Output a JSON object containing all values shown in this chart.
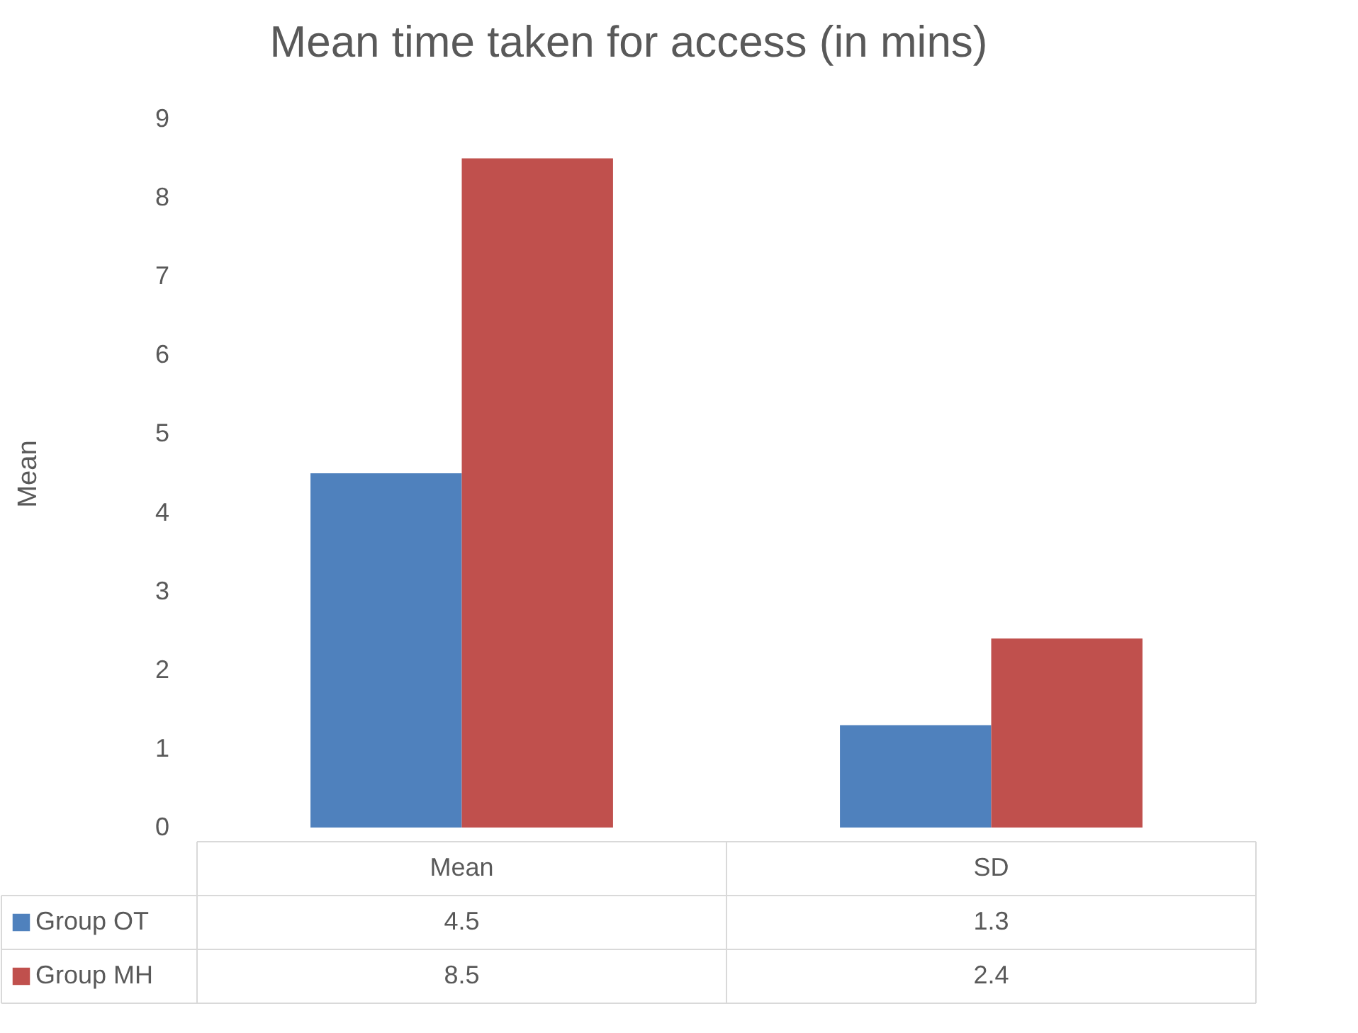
{
  "chart_data": {
    "type": "bar",
    "title": "Mean time taken for access (in mins)",
    "ylabel": "Mean",
    "categories": [
      "Mean",
      "SD"
    ],
    "series": [
      {
        "name": "Group OT",
        "color": "#4f81bd",
        "values": [
          4.5,
          1.3
        ]
      },
      {
        "name": "Group MH",
        "color": "#c0504d",
        "values": [
          8.5,
          2.4
        ]
      }
    ],
    "ylim": [
      0,
      9
    ],
    "yticks": [
      0,
      1,
      2,
      3,
      4,
      5,
      6,
      7,
      8,
      9
    ],
    "data_labels": true,
    "legend": "bottom"
  }
}
